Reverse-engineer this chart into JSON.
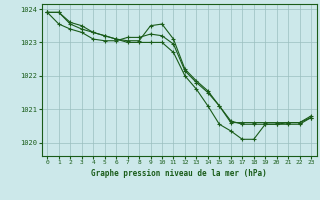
{
  "background_color": "#cce8ea",
  "grid_color": "#9bbfbf",
  "line_color": "#1a5c1a",
  "xlabel": "Graphe pression niveau de la mer (hPa)",
  "xlim": [
    -0.5,
    23.5
  ],
  "ylim": [
    1019.6,
    1024.15
  ],
  "yticks": [
    1020,
    1021,
    1022,
    1023,
    1024
  ],
  "xticks": [
    0,
    1,
    2,
    3,
    4,
    5,
    6,
    7,
    8,
    9,
    10,
    11,
    12,
    13,
    14,
    15,
    16,
    17,
    18,
    19,
    20,
    21,
    22,
    23
  ],
  "series": [
    [
      1023.9,
      1023.9,
      1023.55,
      1023.4,
      1023.3,
      1023.2,
      1023.1,
      1023.05,
      1023.05,
      1023.5,
      1023.55,
      1023.1,
      1022.2,
      1021.85,
      1021.55,
      1021.1,
      1020.65,
      1020.55,
      1020.55,
      1020.55,
      1020.55,
      1020.6,
      1020.6,
      1020.75
    ],
    [
      1023.9,
      1023.9,
      1023.6,
      1023.5,
      1023.3,
      1023.2,
      1023.1,
      1023.0,
      1023.0,
      1023.0,
      1023.0,
      1022.7,
      1022.0,
      1021.6,
      1021.1,
      1020.55,
      1020.35,
      1020.1,
      1020.1,
      1020.55,
      1020.55,
      1020.55,
      1020.55,
      1020.75
    ],
    [
      1023.9,
      1023.55,
      1023.4,
      1023.3,
      1023.1,
      1023.05,
      1023.05,
      1023.15,
      1023.15,
      1023.25,
      1023.2,
      1022.95,
      1022.15,
      1021.8,
      1021.5,
      1021.1,
      1020.6,
      1020.6,
      1020.6,
      1020.6,
      1020.6,
      1020.6,
      1020.6,
      1020.8
    ]
  ]
}
